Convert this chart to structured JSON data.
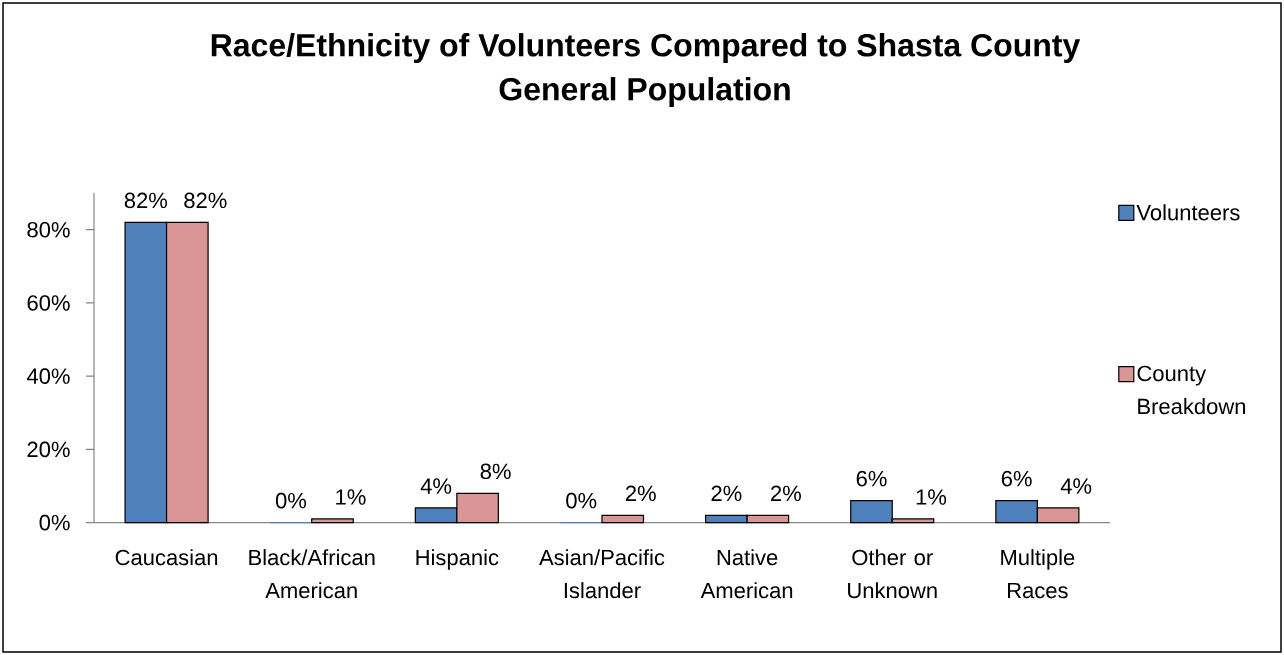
{
  "chart_data": {
    "type": "bar",
    "title": "Race/Ethnicity of Volunteers Compared to Shasta County General Population",
    "categories": [
      "Caucasian",
      "Black/African American",
      "Hispanic",
      "Asian/Pacific Islander",
      "Native American",
      "Other or Unknown",
      "Multiple Races"
    ],
    "series": [
      {
        "name": "Volunteers",
        "color": "#4f81bd",
        "values": [
          82,
          0,
          4,
          0,
          2,
          6,
          6
        ],
        "value_labels": [
          "82%",
          "0%",
          "4%",
          "0%",
          "2%",
          "6%",
          "6%"
        ]
      },
      {
        "name": "County Breakdown",
        "color": "#d99694",
        "values": [
          82,
          1,
          8,
          2,
          2,
          1,
          4
        ],
        "value_labels": [
          "82%",
          "1%",
          "8%",
          "2%",
          "2%",
          "1%",
          "4%"
        ]
      }
    ],
    "ylim": [
      0,
      90
    ],
    "yticks": [
      {
        "value": 0,
        "label": "0%"
      },
      {
        "value": 20,
        "label": "20%"
      },
      {
        "value": 40,
        "label": "40%"
      },
      {
        "value": 60,
        "label": "60%"
      },
      {
        "value": 80,
        "label": "80%"
      }
    ],
    "legend": "right"
  }
}
